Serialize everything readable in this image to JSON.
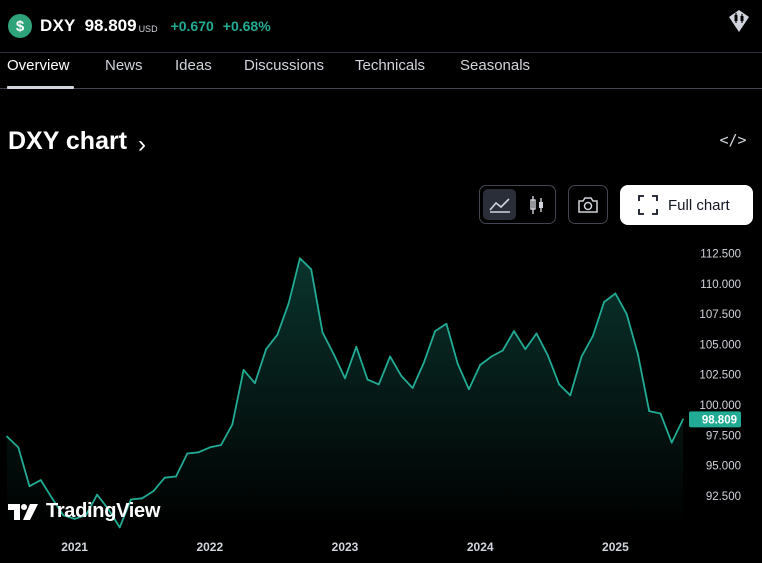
{
  "header": {
    "symbol": "DXY",
    "price": "98.809",
    "currency": "USD",
    "change": "+0.670",
    "change_pct": "+0.68%",
    "logo_glyph": "$",
    "accent": "#22ab94"
  },
  "tabs": [
    {
      "label": "Overview",
      "active": true
    },
    {
      "label": "News"
    },
    {
      "label": "Ideas"
    },
    {
      "label": "Discussions"
    },
    {
      "label": "Technicals"
    },
    {
      "label": "Seasonals"
    }
  ],
  "chart_section": {
    "title": "DXY chart",
    "chevron": "›",
    "embed_glyph": "</>",
    "full_chart_label": "Full chart",
    "watermark": "TradingView"
  },
  "chart_data": {
    "type": "area",
    "title": "",
    "xlabel": "",
    "ylabel": "",
    "line_color": "#22ab94",
    "ylim": [
      90.6,
      114.2
    ],
    "y_ticks": [
      "112.500",
      "110.000",
      "107.500",
      "105.000",
      "102.500",
      "100.000",
      "97.500",
      "95.000",
      "92.500"
    ],
    "x_ticks": [
      "2021",
      "2022",
      "2023",
      "2024",
      "2025"
    ],
    "last_price_label": "98.809",
    "last_price": 98.809,
    "x": [
      "2020-07",
      "2020-08",
      "2020-09",
      "2020-10",
      "2020-11",
      "2020-12",
      "2021-01",
      "2021-02",
      "2021-03",
      "2021-04",
      "2021-05",
      "2021-06",
      "2021-07",
      "2021-08",
      "2021-09",
      "2021-10",
      "2021-11",
      "2021-12",
      "2022-01",
      "2022-02",
      "2022-03",
      "2022-04",
      "2022-05",
      "2022-06",
      "2022-07",
      "2022-08",
      "2022-09",
      "2022-10",
      "2022-11",
      "2022-12",
      "2023-01",
      "2023-02",
      "2023-03",
      "2023-04",
      "2023-05",
      "2023-06",
      "2023-07",
      "2023-08",
      "2023-09",
      "2023-10",
      "2023-11",
      "2023-12",
      "2024-01",
      "2024-02",
      "2024-03",
      "2024-04",
      "2024-05",
      "2024-06",
      "2024-07",
      "2024-08",
      "2024-09",
      "2024-10",
      "2024-11",
      "2024-12",
      "2025-01",
      "2025-02",
      "2025-03",
      "2025-04",
      "2025-05",
      "2025-06",
      "2025-07"
    ],
    "values": [
      97.4,
      96.5,
      93.3,
      93.8,
      92.3,
      90.9,
      90.6,
      90.9,
      92.6,
      91.4,
      89.9,
      92.2,
      92.3,
      92.9,
      94.0,
      94.1,
      96.0,
      96.1,
      96.5,
      96.7,
      98.4,
      102.9,
      101.8,
      104.6,
      105.8,
      108.4,
      112.1,
      111.2,
      106.0,
      104.2,
      102.2,
      104.8,
      102.1,
      101.7,
      104.0,
      102.4,
      101.4,
      103.5,
      106.1,
      106.7,
      103.4,
      101.3,
      103.3,
      104.0,
      104.5,
      106.1,
      104.6,
      105.9,
      104.1,
      101.7,
      100.8,
      104.0,
      105.7,
      108.5,
      109.2,
      107.5,
      104.2,
      99.5,
      99.3,
      96.9,
      98.809
    ]
  }
}
